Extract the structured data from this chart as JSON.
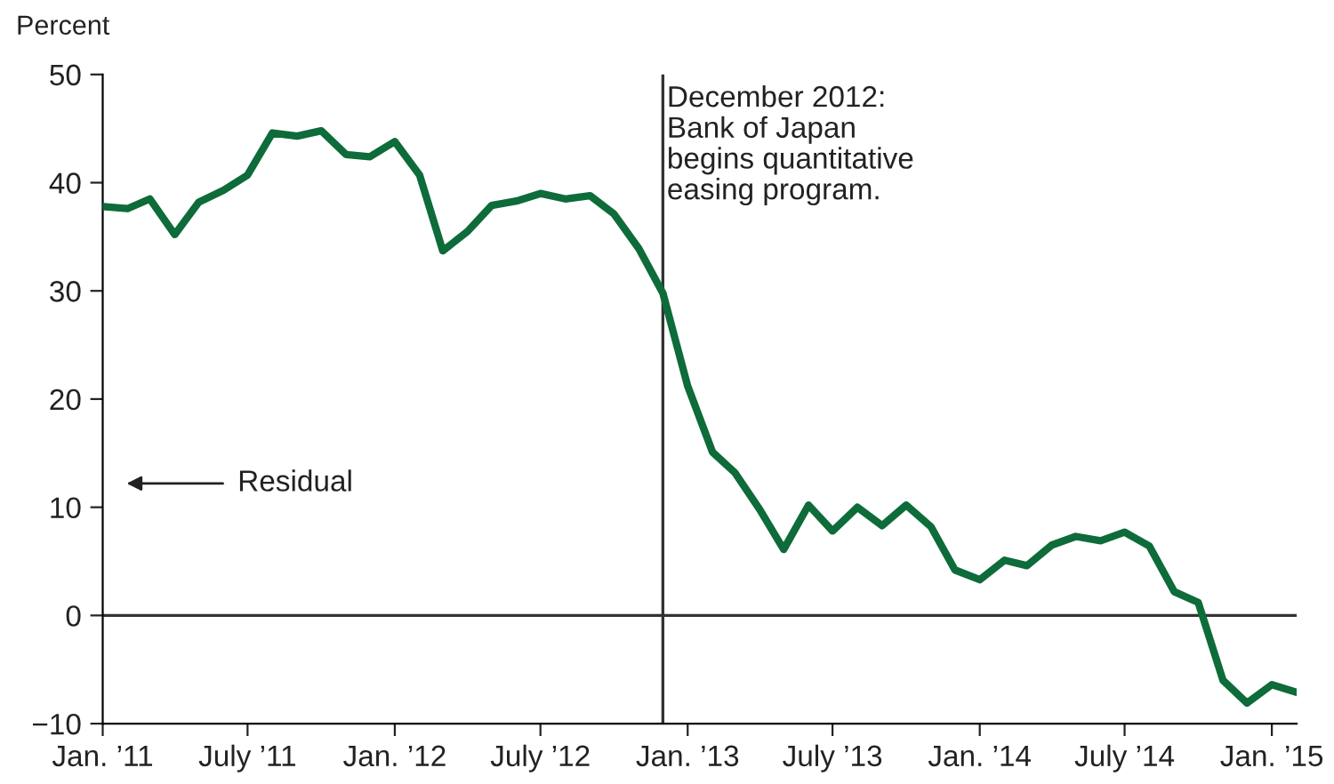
{
  "chart_data": {
    "type": "line",
    "ylabel": "Percent",
    "x": [
      "2011-01",
      "2011-02",
      "2011-03",
      "2011-04",
      "2011-05",
      "2011-06",
      "2011-07",
      "2011-08",
      "2011-09",
      "2011-10",
      "2011-11",
      "2011-12",
      "2012-01",
      "2012-02",
      "2012-03",
      "2012-04",
      "2012-05",
      "2012-06",
      "2012-07",
      "2012-08",
      "2012-09",
      "2012-10",
      "2012-11",
      "2012-12",
      "2013-01",
      "2013-02",
      "2013-03",
      "2013-04",
      "2013-05",
      "2013-06",
      "2013-07",
      "2013-08",
      "2013-09",
      "2013-10",
      "2013-11",
      "2013-12",
      "2014-01",
      "2014-02",
      "2014-03",
      "2014-04",
      "2014-05",
      "2014-06",
      "2014-07",
      "2014-08",
      "2014-09",
      "2014-10",
      "2014-11",
      "2014-12",
      "2015-01",
      "2015-02"
    ],
    "series": [
      {
        "color": "#0e6b3a",
        "values": [
          37.8,
          37.6,
          38.5,
          35.2,
          38.2,
          39.3,
          40.7,
          44.6,
          44.3,
          44.8,
          42.6,
          42.4,
          43.8,
          40.7,
          33.7,
          35.5,
          37.9,
          38.3,
          39.0,
          38.5,
          38.8,
          37.1,
          33.9,
          29.8,
          21.2,
          15.1,
          13.2,
          9.8,
          6.1,
          10.2,
          7.8,
          10.0,
          8.3,
          10.2,
          8.2,
          4.2,
          3.3,
          5.1,
          4.6,
          6.5,
          7.3,
          6.9,
          7.7,
          6.4,
          2.2,
          1.2,
          -6.0,
          -8.1,
          -6.4,
          -7.1
        ]
      }
    ],
    "xlim": [
      "2011-01",
      "2015-02"
    ],
    "xticks": [
      {
        "value": "2011-01",
        "label": "Jan. ’11"
      },
      {
        "value": "2011-07",
        "label": "July ’11"
      },
      {
        "value": "2012-01",
        "label": "Jan. ’12"
      },
      {
        "value": "2012-07",
        "label": "July ’12"
      },
      {
        "value": "2013-01",
        "label": "Jan. ’13"
      },
      {
        "value": "2013-07",
        "label": "July ’13"
      },
      {
        "value": "2014-01",
        "label": "Jan. ’14"
      },
      {
        "value": "2014-07",
        "label": "July ’14"
      },
      {
        "value": "2015-01",
        "label": "Jan. ’15"
      }
    ],
    "ylim": [
      -10,
      50
    ],
    "yticks": [
      -10,
      0,
      10,
      20,
      30,
      40,
      50
    ],
    "ref_lines": [
      {
        "axis": "x",
        "value": "2012-12",
        "label": "December 2012:\nBank of Japan\nbegins quantitative\neasing program.",
        "color": "#333333"
      },
      {
        "axis": "y",
        "value": 0,
        "color": "#333333"
      }
    ],
    "annotations": [
      "Residual"
    ],
    "grid": false,
    "legend": false,
    "line_style": "solid",
    "marker": "none"
  }
}
